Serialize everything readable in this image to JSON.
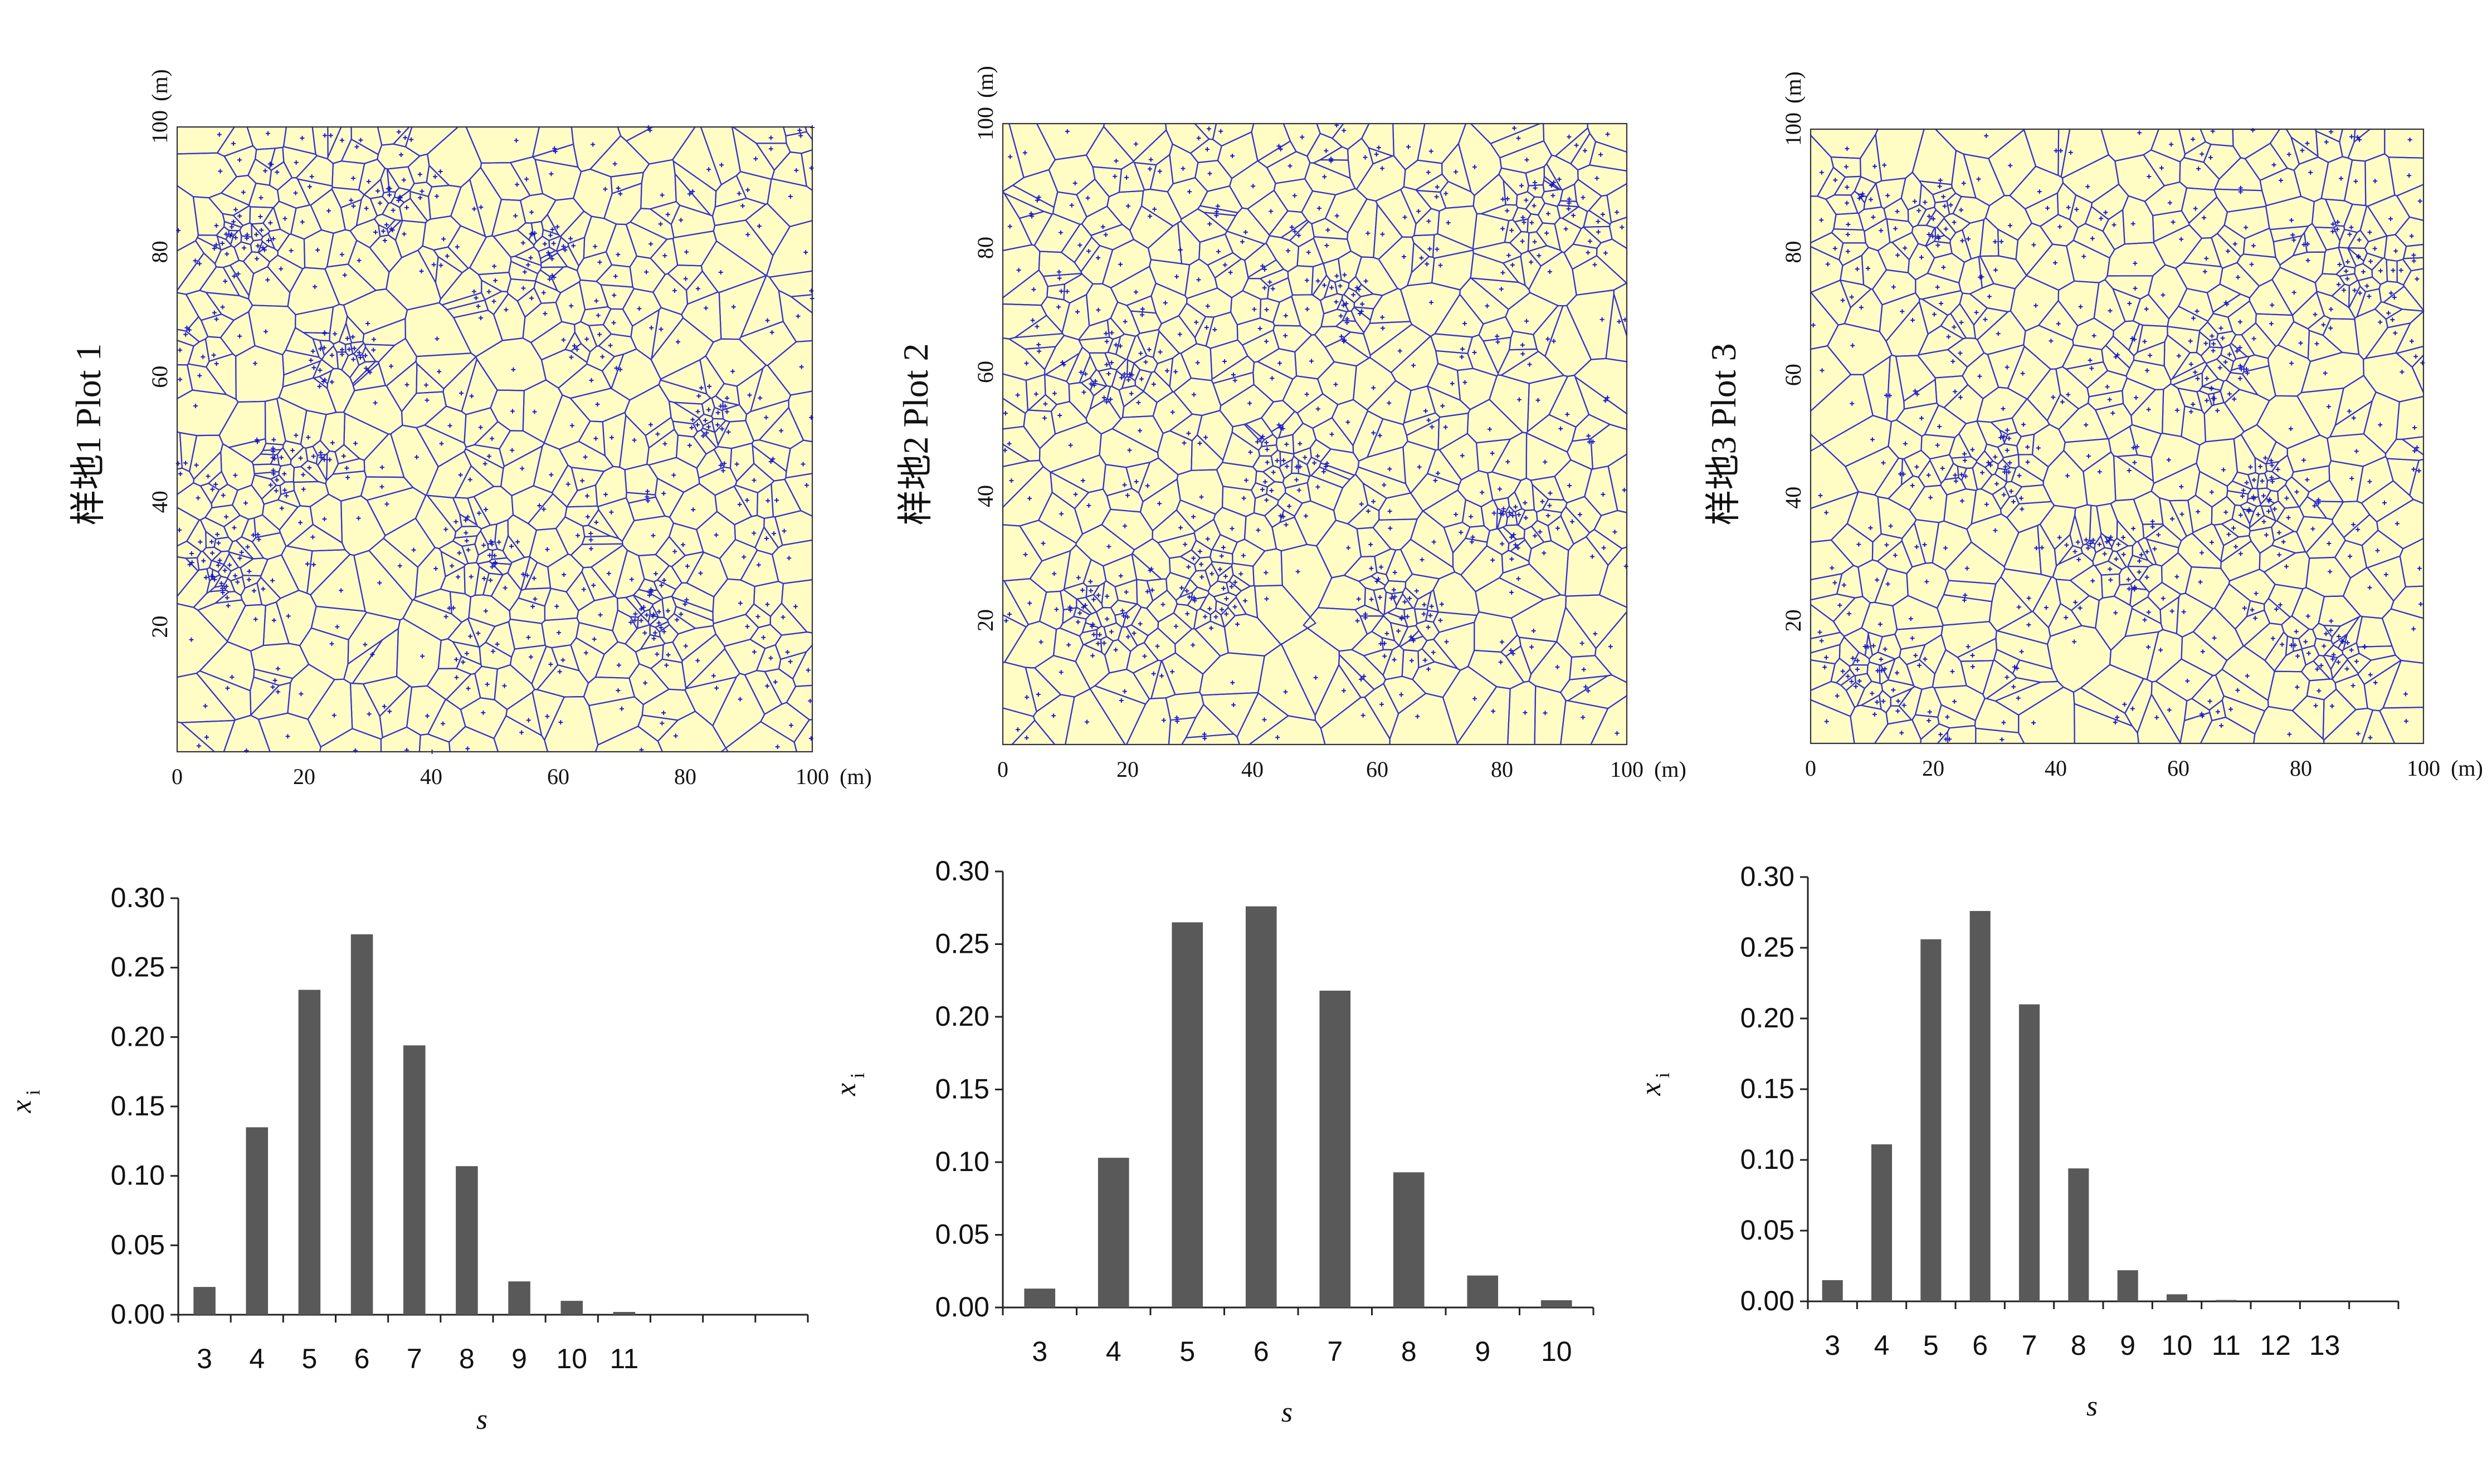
{
  "voronoi_plots": [
    {
      "id": "plot1",
      "side_label": "样地1  Plot 1",
      "x_ticks": [
        "0",
        "20",
        "40",
        "60",
        "80",
        "100"
      ],
      "y_ticks": [
        "20",
        "40",
        "60",
        "80",
        "100"
      ],
      "x_unit": "(m)",
      "y_unit": "(m)",
      "xlim": [
        0,
        100
      ],
      "ylim": [
        0,
        100
      ],
      "fill_color": "#fffcc4",
      "edge_color": "#3333cc",
      "point_color": "#1a1acc",
      "cluster_centers": [
        [
          12,
          82
        ],
        [
          20,
          45
        ],
        [
          48,
          33
        ],
        [
          28,
          62
        ],
        [
          75,
          22
        ],
        [
          60,
          78
        ],
        [
          85,
          55
        ],
        [
          35,
          88
        ],
        [
          8,
          30
        ]
      ]
    },
    {
      "id": "plot2",
      "side_label": "样地2  Plot 2",
      "x_ticks": [
        "0",
        "20",
        "40",
        "60",
        "80",
        "100"
      ],
      "y_ticks": [
        "20",
        "40",
        "60",
        "80",
        "100"
      ],
      "x_unit": "(m)",
      "y_unit": "(m)",
      "xlim": [
        0,
        100
      ],
      "ylim": [
        0,
        100
      ],
      "fill_color": "#fffcc4",
      "edge_color": "#3333cc",
      "point_color": "#1a1acc",
      "cluster_centers": [
        [
          20,
          60
        ],
        [
          55,
          70
        ],
        [
          80,
          35
        ],
        [
          35,
          25
        ],
        [
          65,
          20
        ],
        [
          15,
          20
        ],
        [
          85,
          85
        ],
        [
          45,
          45
        ]
      ]
    },
    {
      "id": "plot3",
      "side_label": "样地3  Plot 3",
      "x_ticks": [
        "0",
        "20",
        "40",
        "60",
        "80",
        "100"
      ],
      "y_ticks": [
        "20",
        "40",
        "60",
        "80",
        "100"
      ],
      "x_unit": "(m)",
      "y_unit": "(m)",
      "xlim": [
        0,
        100
      ],
      "ylim": [
        0,
        100
      ],
      "fill_color": "#fffcc4",
      "edge_color": "#3333cc",
      "point_color": "#1a1acc",
      "cluster_centers": [
        [
          65,
          60
        ],
        [
          85,
          15
        ],
        [
          12,
          12
        ],
        [
          30,
          45
        ],
        [
          90,
          80
        ],
        [
          20,
          85
        ],
        [
          50,
          30
        ],
        [
          75,
          40
        ]
      ]
    }
  ],
  "chart_data": [
    {
      "type": "bar",
      "categories": [
        "3",
        "4",
        "5",
        "6",
        "7",
        "8",
        "9",
        "10",
        "11",
        "",
        "",
        ""
      ],
      "values": [
        0.02,
        0.135,
        0.234,
        0.274,
        0.194,
        0.107,
        0.024,
        0.01,
        0.002,
        0,
        0,
        0
      ],
      "xlabel": "s",
      "ylabel": "x",
      "ylabel_sub": "i",
      "ylim": [
        0,
        0.3
      ],
      "yticks": [
        "0.00",
        "0.05",
        "0.10",
        "0.15",
        "0.20",
        "0.25",
        "0.30"
      ],
      "ytick_values": [
        0,
        0.05,
        0.1,
        0.15,
        0.2,
        0.25,
        0.3
      ],
      "bar_color": "#595959",
      "grid": false
    },
    {
      "type": "bar",
      "categories": [
        "3",
        "4",
        "5",
        "6",
        "7",
        "8",
        "9",
        "10"
      ],
      "values": [
        0.013,
        0.103,
        0.265,
        0.276,
        0.218,
        0.093,
        0.022,
        0.005
      ],
      "xlabel": "s",
      "ylabel": "x",
      "ylabel_sub": "i",
      "ylim": [
        0,
        0.3
      ],
      "yticks": [
        "0.00",
        "0.05",
        "0.10",
        "0.15",
        "0.20",
        "0.25",
        "0.30"
      ],
      "ytick_values": [
        0,
        0.05,
        0.1,
        0.15,
        0.2,
        0.25,
        0.3
      ],
      "bar_color": "#595959",
      "grid": false
    },
    {
      "type": "bar",
      "categories": [
        "3",
        "4",
        "5",
        "6",
        "7",
        "8",
        "9",
        "10",
        "11",
        "12",
        "13",
        ""
      ],
      "values": [
        0.015,
        0.111,
        0.256,
        0.276,
        0.21,
        0.094,
        0.022,
        0.005,
        0.001,
        0,
        0,
        0
      ],
      "xlabel": "s",
      "ylabel": "x",
      "ylabel_sub": "i",
      "ylim": [
        0,
        0.3
      ],
      "yticks": [
        "0.00",
        "0.05",
        "0.10",
        "0.15",
        "0.20",
        "0.25",
        "0.30"
      ],
      "ytick_values": [
        0,
        0.05,
        0.1,
        0.15,
        0.2,
        0.25,
        0.3
      ],
      "bar_color": "#595959",
      "grid": false
    }
  ]
}
